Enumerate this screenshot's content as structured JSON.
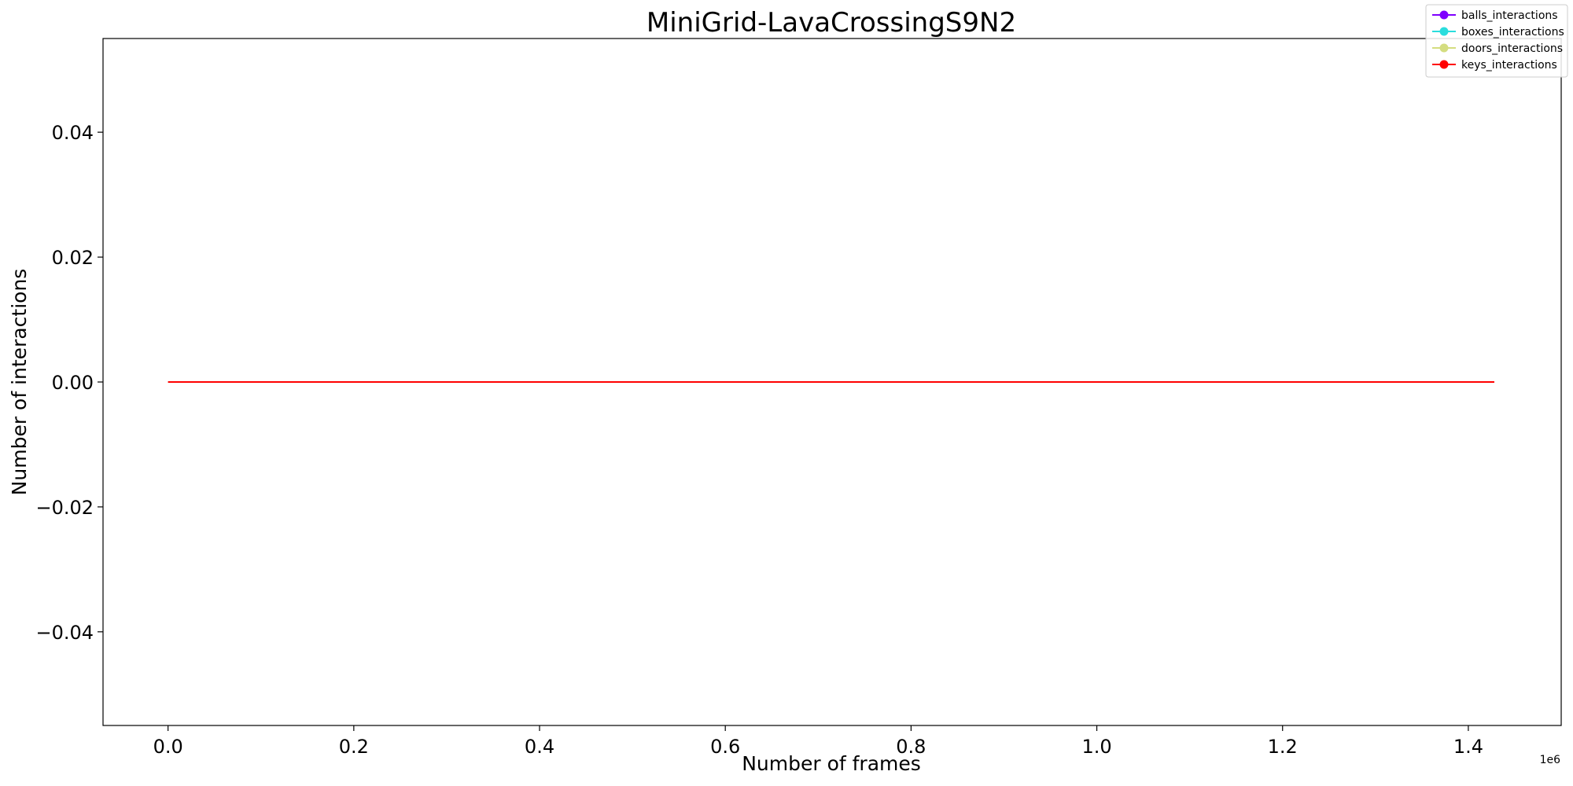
{
  "chart_data": {
    "type": "line",
    "title": "MiniGrid-LavaCrossingS9N2",
    "xlabel": "Number of frames",
    "ylabel": "Number of interactions",
    "x_offset_label": "1e6",
    "xlim": [
      -0.07,
      1.5
    ],
    "ylim": [
      -0.055,
      0.055
    ],
    "xticks": [
      0.0,
      0.2,
      0.4,
      0.6,
      0.8,
      1.0,
      1.2,
      1.4
    ],
    "xtick_labels": [
      "0.0",
      "0.2",
      "0.4",
      "0.6",
      "0.8",
      "1.0",
      "1.2",
      "1.4"
    ],
    "yticks": [
      0.04,
      0.02,
      0.0,
      -0.02,
      -0.04
    ],
    "ytick_labels": [
      "0.04",
      "0.02",
      "0.00",
      "−0.02",
      "−0.04"
    ],
    "grid": false,
    "legend_position": "top-right",
    "series": [
      {
        "name": "balls_interactions",
        "color": "#7f00ff",
        "x": [
          0.0,
          1.428
        ],
        "y": [
          0,
          0
        ]
      },
      {
        "name": "boxes_interactions",
        "color": "#2adddd",
        "x": [
          0.0,
          1.428
        ],
        "y": [
          0,
          0
        ]
      },
      {
        "name": "doors_interactions",
        "color": "#d4dd80",
        "x": [
          0.0,
          1.428
        ],
        "y": [
          0,
          0
        ]
      },
      {
        "name": "keys_interactions",
        "color": "#ff0000",
        "x": [
          0.0,
          1.428
        ],
        "y": [
          0,
          0
        ]
      }
    ]
  }
}
